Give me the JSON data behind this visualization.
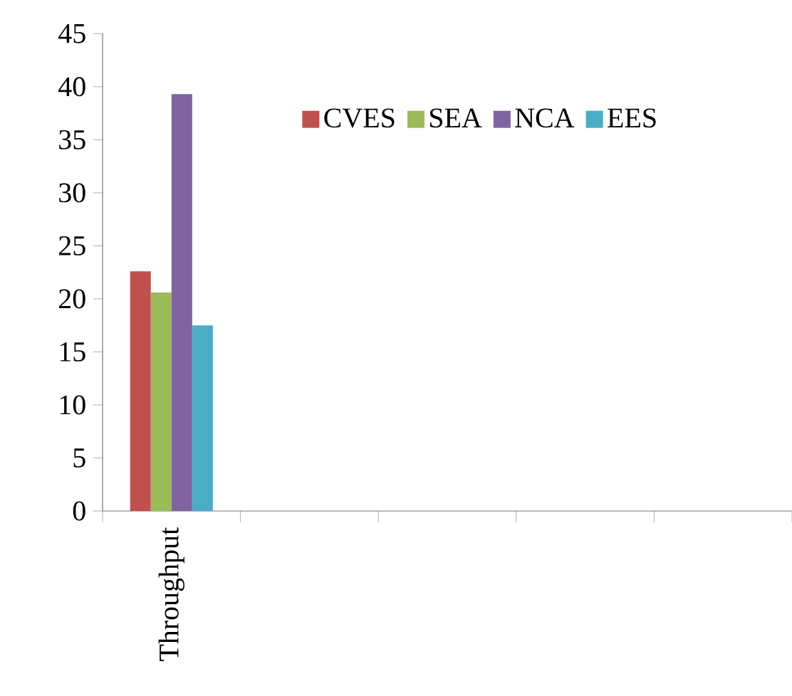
{
  "chart_data": {
    "type": "bar",
    "categories": [
      "Throughput",
      null,
      null,
      null,
      null
    ],
    "series": [
      {
        "name": "CVES",
        "color": "#c0504d",
        "values": [
          22.6,
          null,
          null,
          null,
          null
        ]
      },
      {
        "name": "SEA",
        "color": "#9bbb59",
        "values": [
          20.6,
          null,
          null,
          null,
          null
        ]
      },
      {
        "name": "NCA",
        "color": "#8064a2",
        "values": [
          39.3,
          null,
          null,
          null,
          null
        ]
      },
      {
        "name": "EES",
        "color": "#4bacc6",
        "values": [
          17.5,
          null,
          null,
          null,
          null
        ]
      }
    ],
    "ylim": [
      0,
      45
    ],
    "yticks": [
      0,
      5,
      10,
      15,
      20,
      25,
      30,
      35,
      40,
      45
    ],
    "legend": "top"
  }
}
